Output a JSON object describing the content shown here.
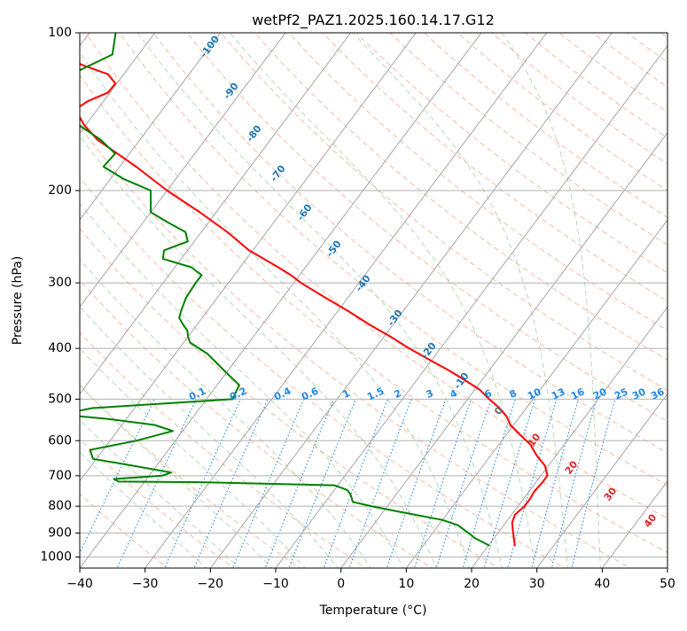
{
  "chart_data": {
    "type": "line",
    "title": "wetPf2_PAZ1.2025.160.14.17.G12",
    "xlabel": "Temperature (°C)",
    "ylabel": "Pressure (hPa)",
    "xlim": [
      -40,
      50
    ],
    "ylim": [
      1050,
      100
    ],
    "y_scale": "log",
    "grid": true,
    "x_ticks": [
      "−40",
      "−30",
      "−20",
      "−10",
      "0",
      "10",
      "20",
      "30",
      "40",
      "50"
    ],
    "y_ticks": [
      {
        "p": 100,
        "label": "100"
      },
      {
        "p": 200,
        "label": "200"
      },
      {
        "p": 300,
        "label": "300"
      },
      {
        "p": 400,
        "label": "400"
      },
      {
        "p": 500,
        "label": "500"
      },
      {
        "p": 600,
        "label": "600"
      },
      {
        "p": 700,
        "label": "700"
      },
      {
        "p": 800,
        "label": "800"
      },
      {
        "p": 900,
        "label": "900"
      },
      {
        "p": 1000,
        "label": "1000"
      }
    ],
    "series": [
      {
        "color": "#ff0000",
        "p": [
          950,
          920,
          890,
          860,
          830,
          800,
          775,
          750,
          720,
          700,
          670,
          640,
          610,
          580,
          560,
          540,
          520,
          500,
          480,
          460,
          440,
          420,
          400,
          380,
          360,
          340,
          320,
          300,
          290,
          280,
          260,
          240,
          220,
          200,
          180,
          160,
          150,
          140,
          135,
          130,
          125,
          120,
          115,
          110,
          105,
          100
        ],
        "T": [
          24,
          23,
          22,
          21,
          20.5,
          21,
          21,
          20.8,
          21,
          21,
          19.5,
          17,
          14.8,
          11.6,
          9.5,
          8,
          5.9,
          3.3,
          0.8,
          -2.6,
          -6.3,
          -10.5,
          -14.8,
          -19,
          -23.7,
          -28.3,
          -33.5,
          -38.9,
          -41.3,
          -44.2,
          -50.6,
          -56,
          -62.5,
          -70,
          -77.5,
          -86.5,
          -90.2,
          -93.4,
          -92.4,
          -90.3,
          -90.2,
          -92.4,
          -97.6,
          -101.4,
          -104.9,
          -108
        ]
      },
      {
        "color": "#008000",
        "p": [
          950,
          920,
          900,
          870,
          850,
          820,
          800,
          785,
          770,
          760,
          745,
          730,
          720,
          718,
          710,
          700,
          690,
          670,
          650,
          625,
          600,
          575,
          560,
          545,
          535,
          520,
          500,
          470,
          440,
          410,
          390,
          380,
          370,
          360,
          350,
          340,
          320,
          300,
          290,
          280,
          270,
          260,
          250,
          240,
          230,
          220,
          200,
          190,
          180,
          170,
          160,
          150,
          140,
          130,
          120,
          110,
          100
        ],
        "Td": [
          20,
          17,
          15.5,
          13,
          10,
          2.5,
          -2.5,
          -5.8,
          -6.5,
          -7,
          -8,
          -10.5,
          -31.5,
          -44,
          -45,
          -38,
          -37,
          -43.5,
          -50.5,
          -52,
          -46,
          -41.5,
          -45,
          -53,
          -60.5,
          -56.5,
          -36,
          -36.6,
          -40.7,
          -45,
          -49,
          -50,
          -50.8,
          -52.2,
          -53.5,
          -54,
          -54.8,
          -55,
          -55,
          -57.5,
          -62.8,
          -63.6,
          -61,
          -62.4,
          -66.2,
          -70,
          -72.5,
          -78,
          -82.5,
          -82.2,
          -86,
          -91,
          -96.2,
          -99,
          -98,
          -94,
          -96
        ]
      }
    ],
    "isotherm_labels": [
      "-100",
      "-90",
      "-80",
      "-70",
      "-60",
      "-50",
      "-40",
      "-30",
      "-20",
      "-10",
      "0",
      "10",
      "20",
      "30",
      "40"
    ],
    "mixing_ratio_labels": [
      "0.1",
      "0.2",
      "0.4",
      "0.6",
      "1",
      "1.5",
      "2",
      "3",
      "4",
      "6",
      "8",
      "10",
      "13",
      "16",
      "20",
      "25",
      "30",
      "36"
    ]
  }
}
